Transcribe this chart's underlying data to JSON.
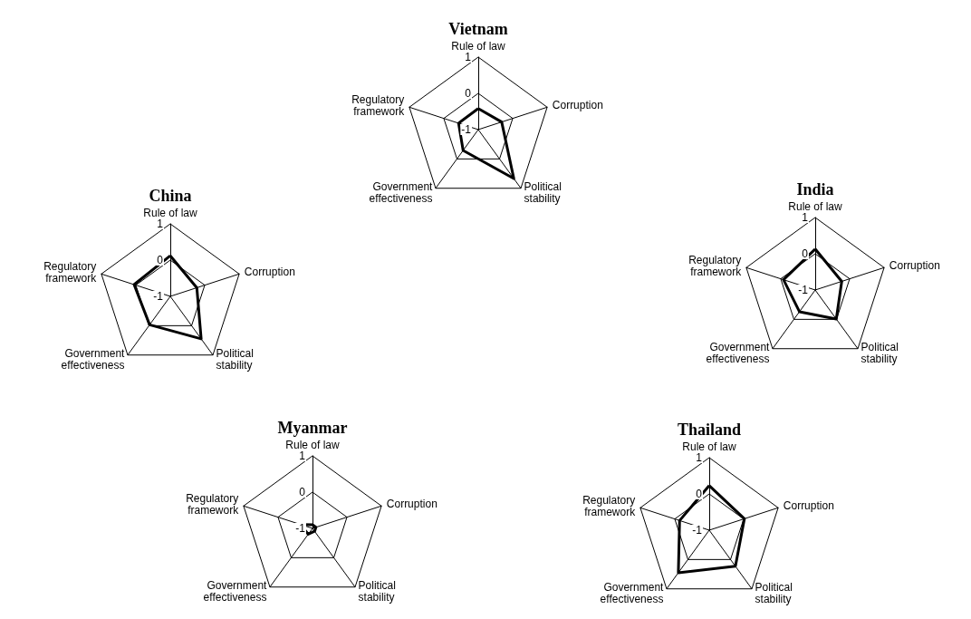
{
  "chart_data": [
    {
      "type": "radar",
      "title": "Vietnam",
      "categories": [
        "Rule of law",
        "Corruption",
        "Political stability",
        "Government effectiveness",
        "Regulatory framework"
      ],
      "ylim": [
        -1,
        1
      ],
      "yticks": [
        -1,
        0,
        1
      ],
      "series": [
        {
          "color": "#000000",
          "values": [
            -0.42,
            -0.32,
            0.67,
            -0.29,
            -0.43
          ]
        }
      ]
    },
    {
      "type": "radar",
      "title": "China",
      "categories": [
        "Rule of law",
        "Corruption",
        "Political stability",
        "Government effectiveness",
        "Regulatory framework"
      ],
      "ylim": [
        -1,
        1
      ],
      "yticks": [
        -1,
        0,
        1
      ],
      "series": [
        {
          "color": "#000000",
          "values": [
            0.12,
            -0.23,
            0.45,
            -0.03,
            0.05
          ]
        }
      ]
    },
    {
      "type": "radar",
      "title": "India",
      "categories": [
        "Rule of law",
        "Corruption",
        "Political stability",
        "Government effectiveness",
        "Regulatory framework"
      ],
      "ylim": [
        -1,
        1
      ],
      "yticks": [
        -1,
        0,
        1
      ],
      "series": [
        {
          "color": "#000000",
          "values": [
            0.13,
            -0.23,
            -0.01,
            -0.26,
            -0.08
          ]
        }
      ]
    },
    {
      "type": "radar",
      "title": "Myanmar",
      "categories": [
        "Rule of law",
        "Corruption",
        "Political stability",
        "Government effectiveness",
        "Regulatory framework"
      ],
      "ylim": [
        -1,
        1
      ],
      "yticks": [
        -1,
        0,
        1
      ],
      "series": [
        {
          "color": "#000000",
          "values": [
            -0.9,
            -0.9,
            -0.9,
            -0.8,
            -0.65
          ]
        }
      ]
    },
    {
      "type": "radar",
      "title": "Thailand",
      "categories": [
        "Rule of law",
        "Corruption",
        "Political stability",
        "Government effectiveness",
        "Regulatory framework"
      ],
      "ylim": [
        -1,
        1
      ],
      "yticks": [
        -1,
        0,
        1
      ],
      "series": [
        {
          "color": "#000000",
          "values": [
            0.23,
            0.02,
            0.23,
            0.45,
            -0.14
          ]
        }
      ]
    }
  ]
}
